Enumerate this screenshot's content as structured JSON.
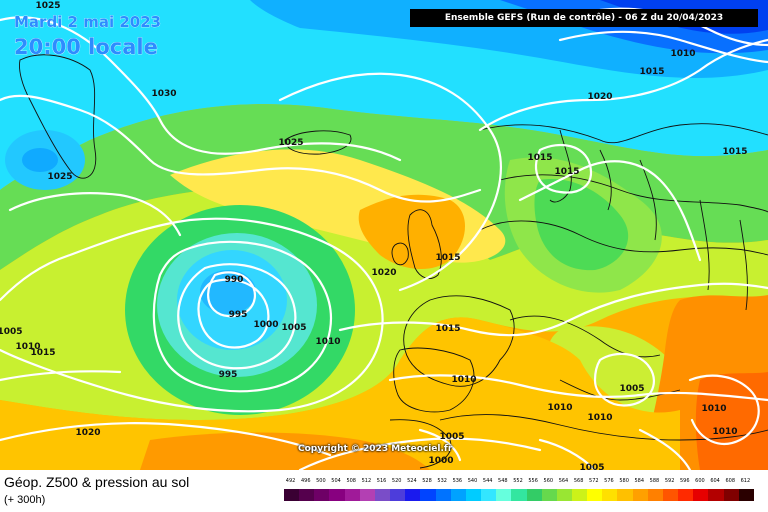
{
  "header": {
    "title": "Ensemble GEFS  (Run de contrôle)  -  06 Z du 20/04/2023"
  },
  "valid_time": {
    "date": "Mardi 2 mai 2023",
    "time": "20:00 locale"
  },
  "copyright": "Copyright © 2023 Meteociel.fr",
  "footer": {
    "title": "Géop. Z500 & pression au sol",
    "subtitle": "(+ 300h)"
  },
  "isobar_labels": [
    "1025",
    "1030",
    "1025",
    "1025",
    "1020",
    "1015",
    "1015",
    "1010",
    "1015",
    "1020",
    "1015",
    "990",
    "995",
    "1000",
    "1005",
    "1010",
    "995",
    "1015",
    "1010",
    "1015",
    "1010",
    "1010",
    "1005",
    "1010",
    "1010",
    "1020",
    "1005",
    "1000",
    "1005",
    "1005",
    "1015",
    "1010"
  ],
  "legend": {
    "values": [
      "492",
      "496",
      "500",
      "504",
      "508",
      "512",
      "516",
      "520",
      "524",
      "528",
      "532",
      "536",
      "540",
      "544",
      "548",
      "552",
      "556",
      "560",
      "564",
      "568",
      "572",
      "576",
      "580",
      "584",
      "588",
      "592",
      "596",
      "600",
      "604",
      "608",
      "612"
    ],
    "colors": [
      "#3a0033",
      "#55004d",
      "#6e0066",
      "#880080",
      "#a01a99",
      "#b340b3",
      "#7a4dc8",
      "#4d3ddb",
      "#1a1aee",
      "#0044ff",
      "#0073ff",
      "#00a2ff",
      "#00ccff",
      "#33e6ff",
      "#66ffdd",
      "#33e6a0",
      "#33cc66",
      "#66d94d",
      "#99e633",
      "#ccf219",
      "#ffff00",
      "#ffe000",
      "#ffc000",
      "#ffa000",
      "#ff8000",
      "#ff5500",
      "#ff2a00",
      "#e60000",
      "#b30000",
      "#800000",
      "#2a0000"
    ]
  }
}
